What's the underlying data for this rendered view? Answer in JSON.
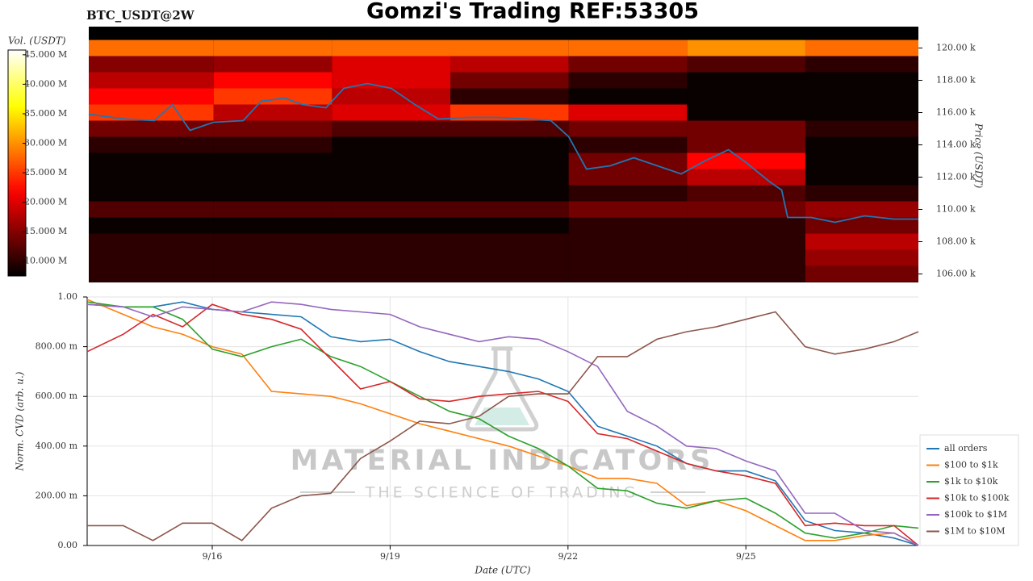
{
  "chart_data": [
    {
      "type": "heatmap",
      "title": "Gomzi's Trading REF:53305",
      "subtitle": "BTC_USDT@2W",
      "ylabel": "Price (USDT)",
      "colormap": "hot",
      "xlim": [
        13.89,
        27.91
      ],
      "ylim": [
        105475,
        121325
      ],
      "yticks": [
        {
          "value": 106000,
          "label": "106.00 k"
        },
        {
          "value": 108000,
          "label": "108.00 k"
        },
        {
          "value": 110000,
          "label": "110.00 k"
        },
        {
          "value": 112000,
          "label": "112.00 k"
        },
        {
          "value": 114000,
          "label": "114.00 k"
        },
        {
          "value": 116000,
          "label": "116.00 k"
        },
        {
          "value": 118000,
          "label": "118.00 k"
        },
        {
          "value": 120000,
          "label": "120.00 k"
        }
      ],
      "x_edges": [
        13.89,
        16,
        18,
        20,
        22,
        24,
        26,
        27.91
      ],
      "y_centers": [
        120000,
        119000,
        118000,
        117000,
        116000,
        115000,
        114000,
        113000,
        112000,
        111000,
        110000,
        109000,
        108000,
        107000,
        106000
      ],
      "z": [
        [
          28000000,
          28000000,
          28000000,
          28000000,
          28000000,
          30000000,
          28000000
        ],
        [
          15000000,
          16000000,
          20000000,
          18000000,
          14000000,
          12000000,
          10000000
        ],
        [
          18000000,
          22000000,
          20000000,
          14000000,
          10000000,
          8000000,
          8000000
        ],
        [
          22000000,
          25000000,
          18000000,
          10000000,
          8000000,
          8000000,
          8000000
        ],
        [
          25000000,
          18000000,
          20000000,
          25000000,
          20000000,
          8000000,
          8000000
        ],
        [
          14000000,
          14000000,
          12000000,
          12000000,
          14000000,
          14000000,
          10000000
        ],
        [
          10000000,
          10000000,
          8000000,
          8000000,
          10000000,
          14000000,
          8000000
        ],
        [
          8000000,
          8000000,
          8000000,
          8000000,
          14000000,
          22000000,
          8000000
        ],
        [
          8000000,
          8000000,
          8000000,
          8000000,
          14000000,
          18000000,
          8000000
        ],
        [
          8000000,
          8000000,
          8000000,
          8000000,
          10000000,
          12000000,
          10000000
        ],
        [
          12000000,
          12000000,
          12000000,
          12000000,
          14000000,
          14000000,
          16000000
        ],
        [
          8000000,
          8000000,
          8000000,
          8000000,
          10000000,
          10000000,
          14000000
        ],
        [
          10000000,
          10000000,
          10000000,
          10000000,
          10000000,
          10000000,
          18000000
        ],
        [
          10000000,
          10000000,
          10000000,
          10000000,
          10000000,
          10000000,
          16000000
        ],
        [
          10000000,
          10000000,
          10000000,
          10000000,
          10000000,
          10000000,
          14000000
        ]
      ],
      "colorbar": {
        "label": "Vol. (USDT)",
        "clim": [
          7500000,
          45800000
        ],
        "ticks": [
          {
            "value": 10000000,
            "label": "10.000 M"
          },
          {
            "value": 15000000,
            "label": "15.000 M"
          },
          {
            "value": 20000000,
            "label": "20.000 M"
          },
          {
            "value": 25000000,
            "label": "25.000 M"
          },
          {
            "value": 30000000,
            "label": "30.000 M"
          },
          {
            "value": 35000000,
            "label": "35.000 M"
          },
          {
            "value": 40000000,
            "label": "40.000 M"
          },
          {
            "value": 45000000,
            "label": "45.000 M"
          }
        ]
      },
      "price": {
        "color": "#1f77b4",
        "x": [
          13.89,
          14.5,
          15,
          15.3,
          15.6,
          16,
          16.5,
          16.8,
          17.2,
          17.5,
          17.9,
          18.2,
          18.6,
          19,
          19.4,
          19.8,
          20.3,
          20.8,
          21.3,
          21.7,
          22,
          22.3,
          22.7,
          23.1,
          23.5,
          23.9,
          24.3,
          24.7,
          25,
          25.4,
          25.6,
          25.7,
          26.1,
          26.5,
          27,
          27.5,
          27.91
        ],
        "values": [
          115900,
          115600,
          115500,
          116500,
          114900,
          115400,
          115500,
          116700,
          116900,
          116500,
          116300,
          117500,
          117800,
          117500,
          116500,
          115600,
          115700,
          115700,
          115600,
          115500,
          114500,
          112500,
          112700,
          113200,
          112700,
          112200,
          113000,
          113700,
          112900,
          111700,
          111200,
          109500,
          109500,
          109200,
          109600,
          109400,
          109400
        ]
      }
    },
    {
      "type": "line",
      "xlabel": "Date (UTC)",
      "ylabel": "Norm. CVD (arb. u.)",
      "grid": true,
      "legend": "right",
      "annotations": [
        "MATERIAL INDICATORS",
        "THE SCIENCE OF TRADING"
      ],
      "xlim": [
        13.89,
        27.91
      ],
      "xticks": [
        {
          "value": 16,
          "label": "9/16"
        },
        {
          "value": 19,
          "label": "9/19"
        },
        {
          "value": 22,
          "label": "9/22"
        },
        {
          "value": 25,
          "label": "9/25"
        }
      ],
      "ylim": [
        0,
        1
      ],
      "yticks": [
        {
          "value": 0,
          "label": "0.00"
        },
        {
          "value": 0.2,
          "label": "200.00 m"
        },
        {
          "value": 0.4,
          "label": "400.00 m"
        },
        {
          "value": 0.6,
          "label": "600.00 m"
        },
        {
          "value": 0.8,
          "label": "800.00 m"
        },
        {
          "value": 1,
          "label": "1.00"
        }
      ],
      "x": [
        13.89,
        14.5,
        15,
        15.5,
        16,
        16.5,
        17,
        17.5,
        18,
        18.5,
        19,
        19.5,
        20,
        20.5,
        21,
        21.5,
        22,
        22.5,
        23,
        23.5,
        24,
        24.5,
        25,
        25.5,
        26,
        26.5,
        27,
        27.5,
        27.91
      ],
      "series": [
        {
          "name": "all orders",
          "color": "#1f77b4",
          "values": [
            0.97,
            0.96,
            0.96,
            0.98,
            0.95,
            0.94,
            0.93,
            0.92,
            0.84,
            0.82,
            0.83,
            0.78,
            0.74,
            0.72,
            0.7,
            0.67,
            0.62,
            0.48,
            0.44,
            0.4,
            0.33,
            0.3,
            0.3,
            0.26,
            0.1,
            0.06,
            0.05,
            0.03,
            0.0
          ]
        },
        {
          "name": "$100 to $1k",
          "color": "#ff7f0e",
          "values": [
            0.99,
            0.93,
            0.88,
            0.85,
            0.8,
            0.77,
            0.62,
            0.61,
            0.6,
            0.57,
            0.53,
            0.49,
            0.46,
            0.43,
            0.4,
            0.36,
            0.32,
            0.27,
            0.27,
            0.25,
            0.16,
            0.18,
            0.14,
            0.08,
            0.02,
            0.02,
            0.04,
            0.05,
            0.0
          ]
        },
        {
          "name": "$1k to $10k",
          "color": "#2ca02c",
          "values": [
            0.98,
            0.96,
            0.96,
            0.91,
            0.79,
            0.76,
            0.8,
            0.83,
            0.76,
            0.72,
            0.66,
            0.6,
            0.54,
            0.51,
            0.44,
            0.39,
            0.32,
            0.23,
            0.22,
            0.17,
            0.15,
            0.18,
            0.19,
            0.13,
            0.05,
            0.03,
            0.05,
            0.08,
            0.07
          ]
        },
        {
          "name": "$10k to $100k",
          "color": "#d62728",
          "values": [
            0.78,
            0.85,
            0.93,
            0.88,
            0.97,
            0.93,
            0.91,
            0.87,
            0.75,
            0.63,
            0.66,
            0.59,
            0.58,
            0.6,
            0.61,
            0.62,
            0.58,
            0.45,
            0.43,
            0.38,
            0.33,
            0.3,
            0.28,
            0.25,
            0.08,
            0.09,
            0.08,
            0.08,
            0.0
          ]
        },
        {
          "name": "$100k to $1M",
          "color": "#9467bd",
          "values": [
            0.97,
            0.96,
            0.92,
            0.96,
            0.95,
            0.94,
            0.98,
            0.97,
            0.95,
            0.94,
            0.93,
            0.88,
            0.85,
            0.82,
            0.84,
            0.83,
            0.78,
            0.72,
            0.54,
            0.48,
            0.4,
            0.39,
            0.34,
            0.3,
            0.13,
            0.13,
            0.06,
            0.05,
            0.0
          ]
        },
        {
          "name": "$1M to $10M",
          "color": "#8c564b",
          "values": [
            0.08,
            0.08,
            0.02,
            0.09,
            0.09,
            0.02,
            0.15,
            0.2,
            0.21,
            0.35,
            0.42,
            0.5,
            0.49,
            0.52,
            0.6,
            0.61,
            0.61,
            0.76,
            0.76,
            0.83,
            0.86,
            0.88,
            0.91,
            0.94,
            0.8,
            0.77,
            0.79,
            0.82,
            0.86
          ]
        }
      ]
    }
  ]
}
